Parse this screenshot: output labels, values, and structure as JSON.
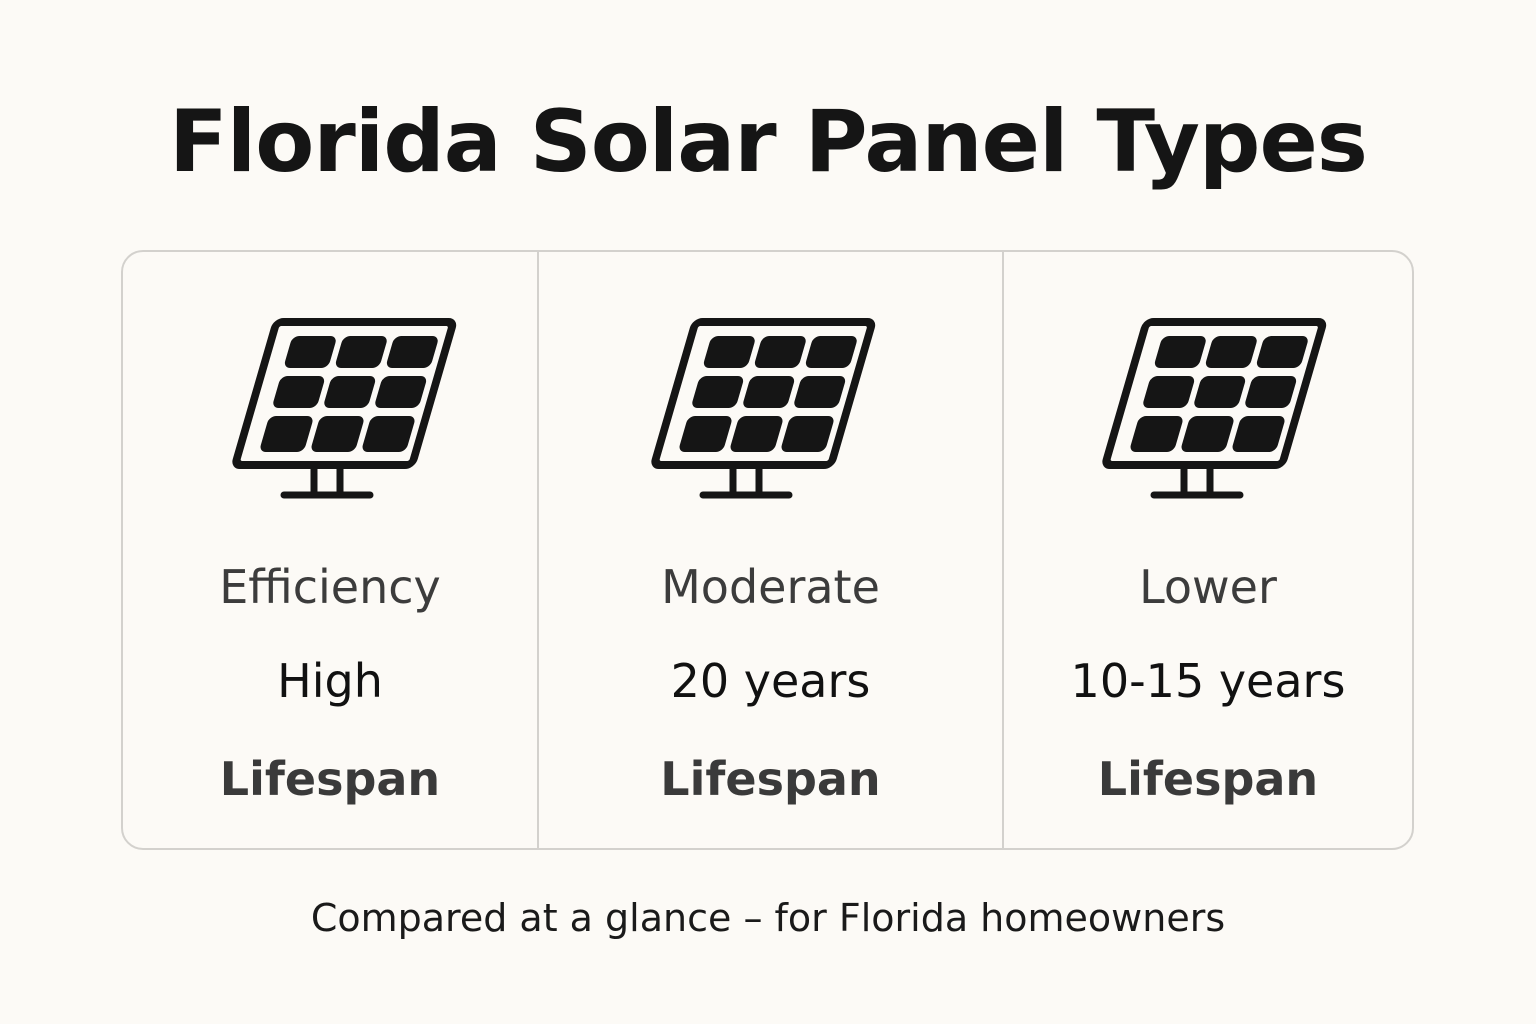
{
  "title": "Florida Solar Panel Types",
  "columns": [
    {
      "icon": "solar-panel-icon",
      "line1": "Efficiency",
      "line2": "High",
      "line3": "Lifespan"
    },
    {
      "icon": "solar-panel-icon",
      "line1": "Moderate",
      "line2": "20 years",
      "line3": "Lifespan"
    },
    {
      "icon": "solar-panel-icon",
      "line1": "Lower",
      "line2": "10-15 years",
      "line3": "Lifespan"
    }
  ],
  "footer": "Compared at a glance – for Florida homeowners",
  "colors": {
    "background": "#fcfaf6",
    "icon": "#151515",
    "border": "#d3d1cd"
  }
}
